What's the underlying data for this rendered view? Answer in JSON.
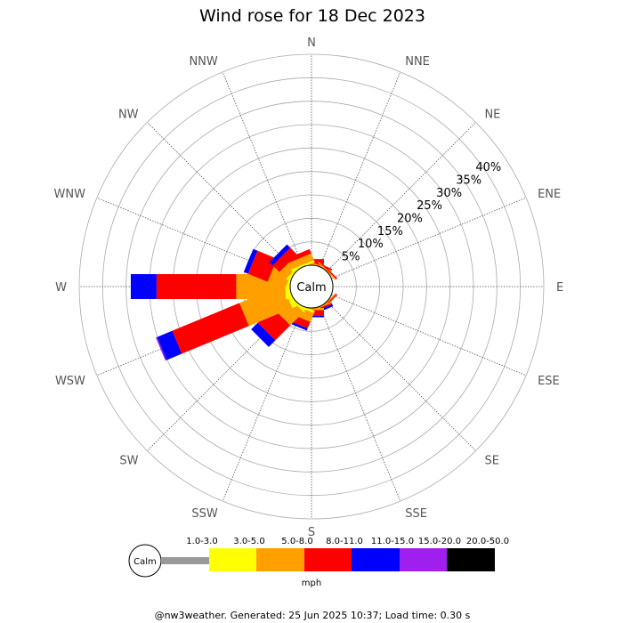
{
  "chart_data": {
    "type": "wind-rose",
    "title": "Wind rose for 18 Dec 2023",
    "directions": [
      "N",
      "NNE",
      "NE",
      "ENE",
      "E",
      "ESE",
      "SE",
      "SSE",
      "S",
      "SSW",
      "SW",
      "WSW",
      "W",
      "WNW",
      "NW",
      "NNW"
    ],
    "ring_labels": [
      "5%",
      "10%",
      "15%",
      "20%",
      "25%",
      "30%",
      "35%",
      "40%"
    ],
    "ring_values": [
      5,
      10,
      15,
      20,
      25,
      30,
      35,
      40
    ],
    "rmax": 45,
    "calm_label": "Calm",
    "speed_unit": "mph",
    "bins": [
      {
        "label": "1.0-3.0",
        "color": "#999999"
      },
      {
        "label": "3.0-5.0",
        "color": "#ffff00"
      },
      {
        "label": "5.0-8.0",
        "color": "#ff9f00"
      },
      {
        "label": "8.0-11.0",
        "color": "#ff0000"
      },
      {
        "label": "11.0-15.0",
        "color": "#0000ff"
      },
      {
        "label": "15.0-20.0",
        "color": "#9f1fef"
      },
      {
        "label": "20.0-50.0",
        "color": "#000000"
      }
    ],
    "values": {
      "N": [
        0,
        0,
        0.3,
        1.0,
        0,
        0,
        0
      ],
      "NNE": [
        0,
        0,
        0.3,
        0.3,
        0,
        0,
        0
      ],
      "NE": [
        0,
        0,
        0.3,
        0.3,
        0,
        0,
        0
      ],
      "ENE": [
        0,
        0,
        0,
        0,
        0,
        0,
        0
      ],
      "E": [
        0,
        0,
        0,
        0,
        0,
        0,
        0
      ],
      "ESE": [
        0,
        0,
        0,
        0,
        0,
        0,
        0
      ],
      "SE": [
        0,
        0,
        0.3,
        0.3,
        0,
        0,
        0
      ],
      "SSE": [
        0,
        0,
        0.3,
        0.3,
        0.5,
        0,
        0
      ],
      "S": [
        0,
        0,
        0.5,
        1.2,
        0.3,
        0,
        0
      ],
      "SSW": [
        0,
        0.5,
        2.0,
        1.5,
        0.5,
        0,
        0
      ],
      "SW": [
        0,
        0.5,
        4.0,
        4.5,
        2.0,
        0,
        0
      ],
      "WSW": [
        0,
        1.0,
        10.0,
        15.5,
        3.5,
        0.3,
        0
      ],
      "W": [
        0,
        1.0,
        10.5,
        17.0,
        5.5,
        0,
        0
      ],
      "WNW": [
        0,
        0.5,
        4.0,
        4.5,
        1.0,
        0,
        0
      ],
      "NW": [
        0,
        0.5,
        2.0,
        2.0,
        1.0,
        0,
        0
      ],
      "NNW": [
        0,
        0.5,
        1.5,
        1.0,
        0,
        0,
        0
      ]
    },
    "grid": true
  },
  "footer": "@nw3weather. Generated: 25 Jun 2025 10:37; Load time: 0.30 s"
}
